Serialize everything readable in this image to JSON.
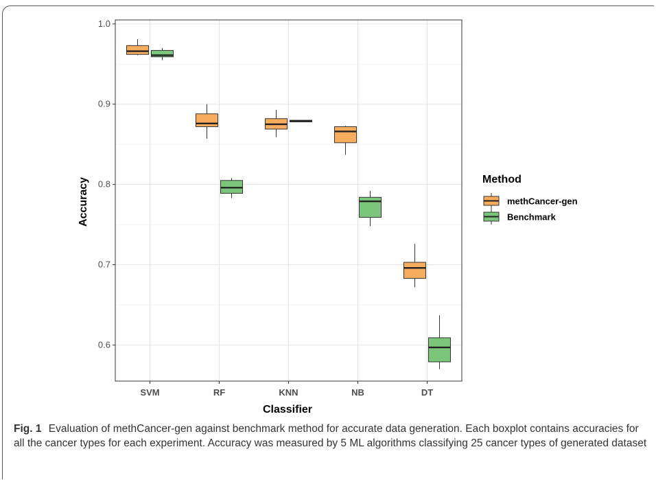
{
  "chart_data": {
    "type": "boxplot",
    "xlabel": "Classifier",
    "ylabel": "Accuracy",
    "ylim": [
      0.555,
      1.005
    ],
    "yticks": [
      0.6,
      0.7,
      0.8,
      0.9,
      1.0
    ],
    "ytick_labels": [
      "0.6",
      "0.7",
      "0.8",
      "0.9",
      "1.0"
    ],
    "categories": [
      "SVM",
      "RF",
      "KNN",
      "NB",
      "DT"
    ],
    "grid": true,
    "legend": {
      "title": "Method",
      "position": "right"
    },
    "series": [
      {
        "name": "methCancer-gen",
        "color": "#F8AC5E",
        "boxes": [
          {
            "category": "SVM",
            "whisker_low": 0.961,
            "q1": 0.962,
            "median": 0.966,
            "q3": 0.973,
            "whisker_high": 0.981
          },
          {
            "category": "RF",
            "whisker_low": 0.857,
            "q1": 0.872,
            "median": 0.876,
            "q3": 0.888,
            "whisker_high": 0.9
          },
          {
            "category": "KNN",
            "whisker_low": 0.859,
            "q1": 0.869,
            "median": 0.875,
            "q3": 0.882,
            "whisker_high": 0.893
          },
          {
            "category": "NB",
            "whisker_low": 0.837,
            "q1": 0.852,
            "median": 0.866,
            "q3": 0.872,
            "whisker_high": 0.873
          },
          {
            "category": "DT",
            "whisker_low": 0.672,
            "q1": 0.683,
            "median": 0.696,
            "q3": 0.703,
            "whisker_high": 0.726
          }
        ]
      },
      {
        "name": "Benchmark",
        "color": "#7BC67A",
        "boxes": [
          {
            "category": "SVM",
            "whisker_low": 0.955,
            "q1": 0.959,
            "median": 0.961,
            "q3": 0.967,
            "whisker_high": 0.97
          },
          {
            "category": "RF",
            "whisker_low": 0.783,
            "q1": 0.789,
            "median": 0.796,
            "q3": 0.805,
            "whisker_high": 0.808
          },
          {
            "category": "KNN",
            "whisker_low": 0.878,
            "q1": 0.878,
            "median": 0.879,
            "q3": 0.88,
            "whisker_high": 0.88
          },
          {
            "category": "NB",
            "whisker_low": 0.748,
            "q1": 0.759,
            "median": 0.779,
            "q3": 0.784,
            "whisker_high": 0.792
          },
          {
            "category": "DT",
            "whisker_low": 0.57,
            "q1": 0.579,
            "median": 0.597,
            "q3": 0.609,
            "whisker_high": 0.637
          }
        ]
      }
    ]
  },
  "caption": {
    "label": "Fig. 1",
    "text": "Evaluation of methCancer-gen against benchmark method for accurate data generation. Each boxplot contains accuracies for all the cancer types for each experiment. Accuracy was measured by 5 ML algorithms classifying 25 cancer types of generated dataset"
  }
}
